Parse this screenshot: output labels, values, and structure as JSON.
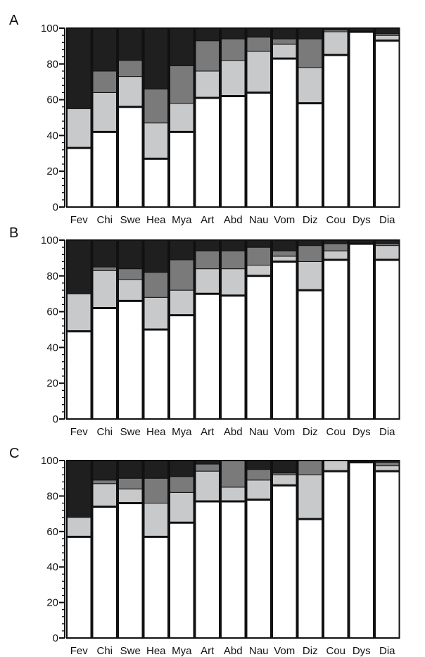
{
  "figure": {
    "colors": {
      "seg1": "#ffffff",
      "seg2": "#c8c9ca",
      "seg3": "#7a7a7a",
      "seg4": "#1f1f1f",
      "stroke": "#111111"
    }
  },
  "chart_data": [
    {
      "type": "bar",
      "stacked": true,
      "title": "A",
      "categories": [
        "Fev",
        "Chi",
        "Swe",
        "Hea",
        "Mya",
        "Art",
        "Abd",
        "Nau",
        "Vom",
        "Diz",
        "Cou",
        "Dys",
        "Dia"
      ],
      "ylim": [
        0,
        100
      ],
      "yticks": [
        0,
        20,
        40,
        60,
        80,
        100
      ],
      "series": [
        {
          "values": [
            33,
            42,
            56,
            27,
            42,
            61,
            62,
            64,
            83,
            58,
            85,
            98,
            93
          ]
        },
        {
          "values": [
            22,
            22,
            17,
            20,
            16,
            15,
            20,
            23,
            8,
            20,
            13,
            0,
            3
          ]
        },
        {
          "values": [
            0,
            12,
            9,
            19,
            21,
            17,
            12,
            8,
            3,
            16,
            1,
            0,
            1
          ]
        },
        {
          "values": [
            45,
            24,
            18,
            34,
            21,
            7,
            6,
            5,
            6,
            6,
            1,
            2,
            3
          ]
        }
      ]
    },
    {
      "type": "bar",
      "stacked": true,
      "title": "B",
      "categories": [
        "Fev",
        "Chi",
        "Swe",
        "Hea",
        "Mya",
        "Art",
        "Abd",
        "Nau",
        "Vom",
        "Diz",
        "Cou",
        "Dys",
        "Dia"
      ],
      "ylim": [
        0,
        100
      ],
      "yticks": [
        0,
        20,
        40,
        60,
        80,
        100
      ],
      "series": [
        {
          "values": [
            49,
            62,
            66,
            50,
            58,
            70,
            69,
            80,
            88,
            72,
            89,
            98,
            89
          ]
        },
        {
          "values": [
            21,
            21,
            12,
            18,
            14,
            14,
            15,
            6,
            3,
            16,
            5,
            0,
            8
          ]
        },
        {
          "values": [
            0,
            2,
            6,
            14,
            17,
            10,
            10,
            10,
            3,
            9,
            4,
            0,
            1
          ]
        },
        {
          "values": [
            30,
            15,
            16,
            18,
            11,
            6,
            6,
            4,
            6,
            3,
            2,
            2,
            2
          ]
        }
      ]
    },
    {
      "type": "bar",
      "stacked": true,
      "title": "C",
      "categories": [
        "Fev",
        "Chi",
        "Swe",
        "Hea",
        "Mya",
        "Art",
        "Abd",
        "Nau",
        "Vom",
        "Diz",
        "Cou",
        "Dys",
        "Dia"
      ],
      "ylim": [
        0,
        100
      ],
      "yticks": [
        0,
        20,
        40,
        60,
        80,
        100
      ],
      "series": [
        {
          "values": [
            57,
            74,
            76,
            57,
            65,
            77,
            77,
            78,
            86,
            67,
            94,
            99,
            94
          ]
        },
        {
          "values": [
            11,
            13,
            8,
            19,
            17,
            17,
            8,
            11,
            6,
            25,
            6,
            0,
            3
          ]
        },
        {
          "values": [
            0,
            2,
            6,
            14,
            9,
            4,
            15,
            6,
            1,
            8,
            0,
            0,
            2
          ]
        },
        {
          "values": [
            32,
            11,
            10,
            10,
            9,
            2,
            0,
            5,
            7,
            0,
            0,
            1,
            1
          ]
        }
      ]
    }
  ]
}
